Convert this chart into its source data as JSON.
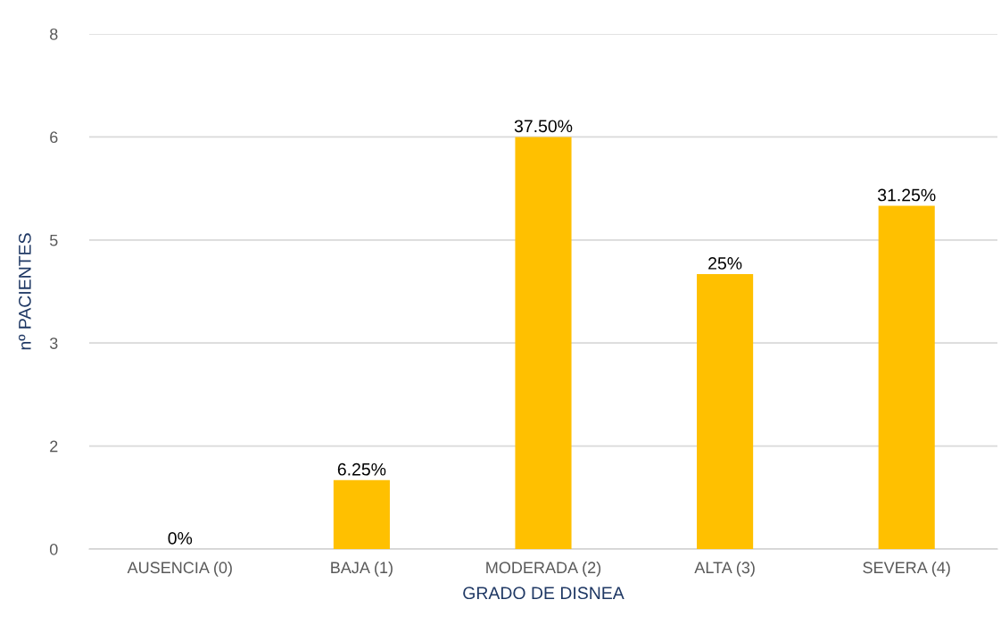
{
  "chart_data": {
    "type": "bar",
    "xlabel": "GRADO DE DISNEA",
    "ylabel": "nº PACIENTES",
    "categories": [
      "AUSENCIA (0)",
      "BAJA (1)",
      "MODERADA (2)",
      "ALTA (3)",
      "SEVERA (4)"
    ],
    "values": [
      0,
      1.07,
      6.4,
      4.27,
      5.33
    ],
    "annotations": [
      {
        "text": "0%",
        "x": "AUSENCIA (0)",
        "y": 0
      },
      {
        "text": "6.25%",
        "x": "BAJA (1)",
        "y": 1.07
      },
      {
        "text": "37.50%",
        "x": "MODERADA (2)",
        "y": 6.4
      },
      {
        "text": "25%",
        "x": "ALTA (3)",
        "y": 4.27
      },
      {
        "text": "31.25%",
        "x": "SEVERA (4)",
        "y": 5.33
      }
    ],
    "color": "#ffc000",
    "ylim": [
      0,
      8
    ],
    "yticks": [
      0,
      {
        "value": 1.6,
        "label": "2"
      },
      {
        "value": 3.2,
        "label": "3"
      },
      {
        "value": 4.8,
        "label": "5"
      },
      {
        "value": 6.4,
        "label": "6"
      },
      8
    ],
    "grid": "y",
    "legend": false
  }
}
